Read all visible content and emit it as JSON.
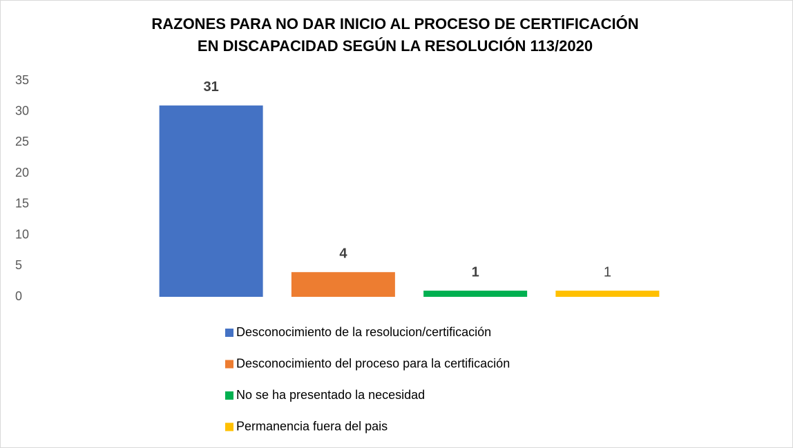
{
  "chart_data": {
    "type": "bar",
    "title": [
      "RAZONES PARA NO DAR INICIO AL PROCESO DE CERTIFICACIÓN",
      "EN DISCAPACIDAD SEGÚN LA RESOLUCIÓN 113/2020"
    ],
    "series": [
      {
        "name": "Desconocimiento de la resolucion/certificación",
        "color": "#4472c4",
        "values": [
          31
        ]
      },
      {
        "name": "Desconocimiento del proceso para la certificación",
        "color": "#ed7d31",
        "values": [
          4
        ]
      },
      {
        "name": "No se ha presentado la necesidad",
        "color": "#00b050",
        "values": [
          1
        ]
      },
      {
        "name": "Permanencia fuera del pais",
        "color": "#ffc000",
        "values": [
          1
        ]
      }
    ],
    "ylim": [
      0,
      35
    ],
    "yticks": [
      0,
      5,
      10,
      15,
      20,
      25,
      30,
      35
    ],
    "grid": false,
    "legend": "bottom"
  }
}
